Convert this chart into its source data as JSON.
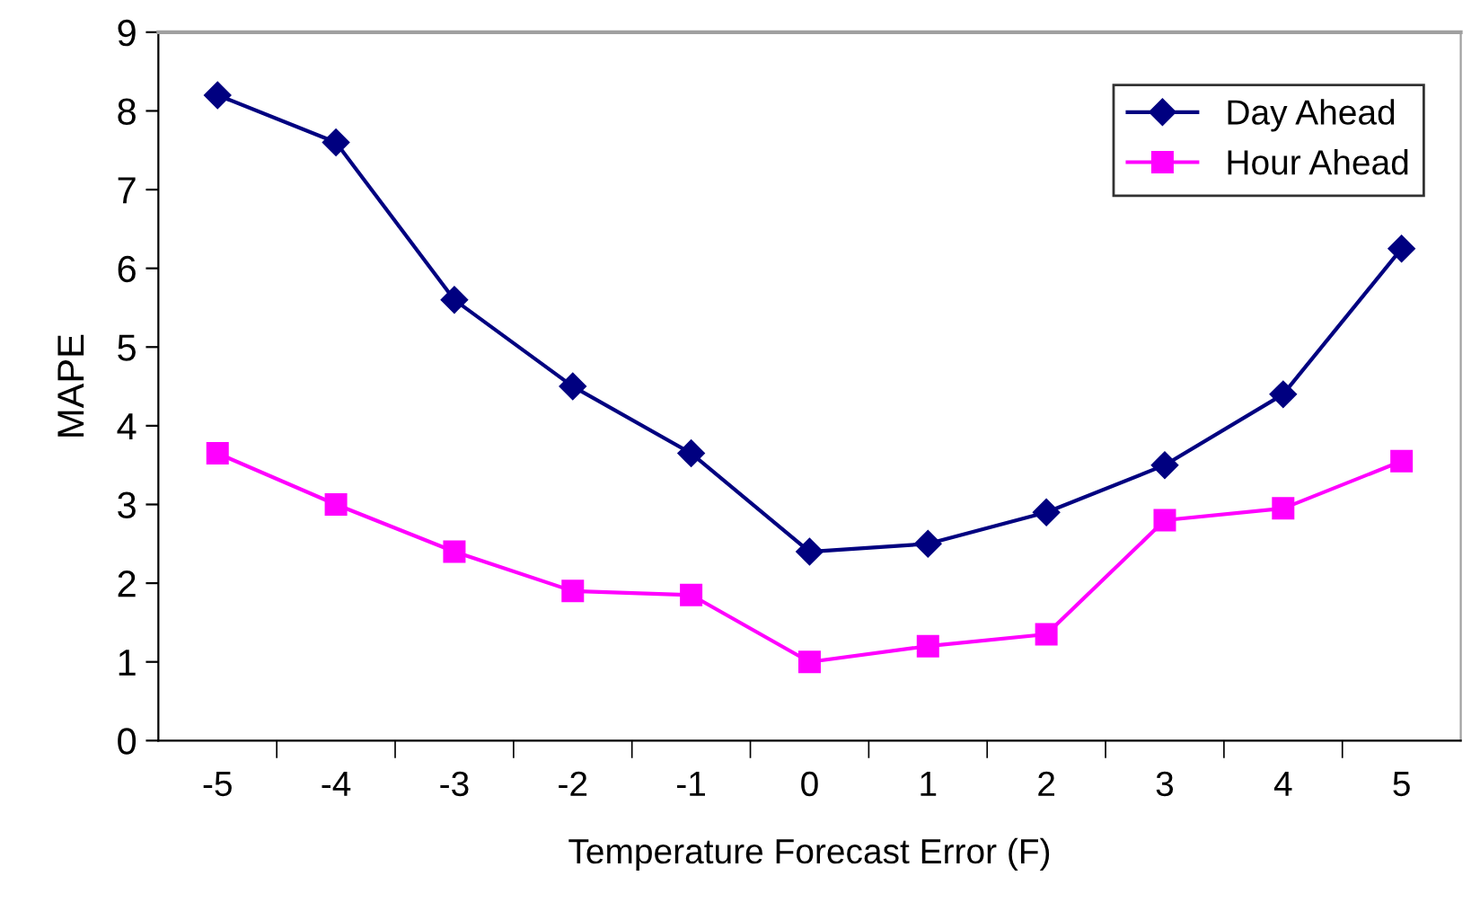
{
  "chart_data": {
    "type": "line",
    "xlabel": "Temperature Forecast Error (F)",
    "ylabel": "MAPE",
    "categories": [
      "-5",
      "-4",
      "-3",
      "-2",
      "-1",
      "0",
      "1",
      "2",
      "3",
      "4",
      "5"
    ],
    "series": [
      {
        "name": "Day Ahead",
        "color": "#000080",
        "marker": "diamond",
        "values": [
          8.2,
          7.6,
          5.6,
          4.5,
          3.65,
          2.4,
          2.5,
          2.9,
          3.5,
          4.4,
          6.25
        ]
      },
      {
        "name": "Hour Ahead",
        "color": "#ff00ff",
        "marker": "square",
        "values": [
          3.65,
          3.0,
          2.4,
          1.9,
          1.85,
          1.0,
          1.2,
          1.35,
          2.8,
          2.95,
          3.55
        ]
      }
    ],
    "ylim": [
      0,
      9
    ],
    "yticks": [
      0,
      1,
      2,
      3,
      4,
      5,
      6,
      7,
      8,
      9
    ],
    "grid": false,
    "legend": "top right",
    "line_style": "solid"
  }
}
